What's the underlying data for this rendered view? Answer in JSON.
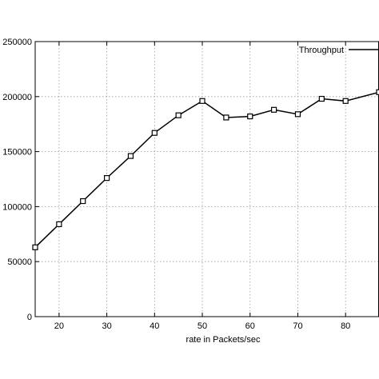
{
  "chart_data": {
    "type": "line",
    "title": "",
    "xlabel": "rate in Packets/sec",
    "ylabel": "",
    "xlim": [
      15,
      87
    ],
    "ylim": [
      0,
      250000
    ],
    "x_ticks": [
      20,
      30,
      40,
      50,
      60,
      70,
      80
    ],
    "y_ticks": [
      0,
      50000,
      100000,
      150000,
      200000,
      250000
    ],
    "grid": true,
    "legend_position": "top-right",
    "series": [
      {
        "name": "Throughput",
        "color": "#000000",
        "marker": "square",
        "x": [
          15,
          20,
          25,
          30,
          35,
          40,
          45,
          50,
          55,
          60,
          65,
          70,
          75,
          80,
          87
        ],
        "y": [
          63000,
          84000,
          105000,
          126000,
          146000,
          167000,
          183000,
          196000,
          181000,
          182000,
          188000,
          184000,
          198000,
          196000,
          204000
        ]
      }
    ]
  }
}
